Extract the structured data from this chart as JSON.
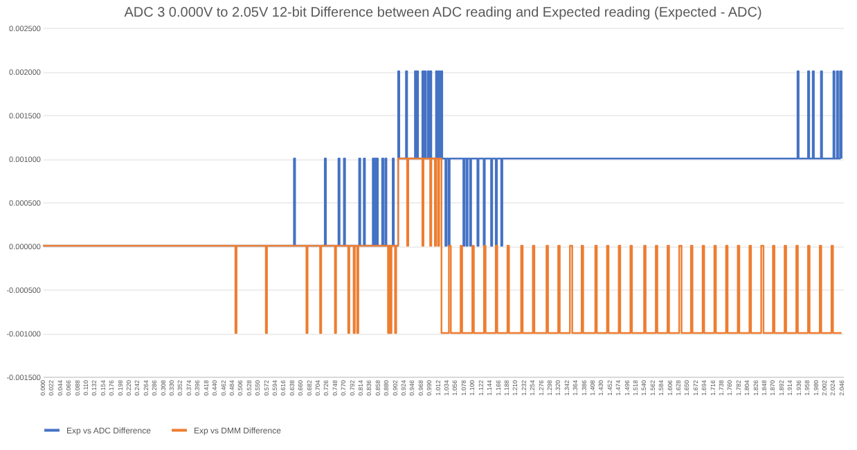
{
  "chart_data": {
    "type": "step",
    "title": "ADC 3 0.000V to 2.05V 12-bit Difference between ADC reading and Expected reading (Expected - ADC)",
    "xlim": [
      0,
      2.05
    ],
    "xticks": [
      {
        "value": 0,
        "label": "0.000"
      },
      {
        "value": 0.022,
        "label": "0.022"
      },
      {
        "value": 0.044,
        "label": "0.044"
      },
      {
        "value": 0.066,
        "label": "0.066"
      },
      {
        "value": 0.088,
        "label": "0.088"
      },
      {
        "value": 0.11,
        "label": "0.110"
      },
      {
        "value": 0.132,
        "label": "0.132"
      },
      {
        "value": 0.154,
        "label": "0.154"
      },
      {
        "value": 0.176,
        "label": "0.176"
      },
      {
        "value": 0.198,
        "label": "0.198"
      },
      {
        "value": 0.22,
        "label": "0.220"
      },
      {
        "value": 0.242,
        "label": "0.242"
      },
      {
        "value": 0.264,
        "label": "0.264"
      },
      {
        "value": 0.286,
        "label": "0.286"
      },
      {
        "value": 0.308,
        "label": "0.308"
      },
      {
        "value": 0.33,
        "label": "0.330"
      },
      {
        "value": 0.352,
        "label": "0.352"
      },
      {
        "value": 0.374,
        "label": "0.374"
      },
      {
        "value": 0.396,
        "label": "0.396"
      },
      {
        "value": 0.418,
        "label": "0.418"
      },
      {
        "value": 0.44,
        "label": "0.440"
      },
      {
        "value": 0.462,
        "label": "0.462"
      },
      {
        "value": 0.484,
        "label": "0.484"
      },
      {
        "value": 0.506,
        "label": "0.506"
      },
      {
        "value": 0.528,
        "label": "0.528"
      },
      {
        "value": 0.55,
        "label": "0.550"
      },
      {
        "value": 0.572,
        "label": "0.572"
      },
      {
        "value": 0.594,
        "label": "0.594"
      },
      {
        "value": 0.616,
        "label": "0.616"
      },
      {
        "value": 0.638,
        "label": "0.638"
      },
      {
        "value": 0.66,
        "label": "0.660"
      },
      {
        "value": 0.682,
        "label": "0.682"
      },
      {
        "value": 0.704,
        "label": "0.704"
      },
      {
        "value": 0.726,
        "label": "0.726"
      },
      {
        "value": 0.748,
        "label": "0.748"
      },
      {
        "value": 0.77,
        "label": "0.770"
      },
      {
        "value": 0.792,
        "label": "0.792"
      },
      {
        "value": 0.814,
        "label": "0.814"
      },
      {
        "value": 0.836,
        "label": "0.836"
      },
      {
        "value": 0.858,
        "label": "0.858"
      },
      {
        "value": 0.88,
        "label": "0.880"
      },
      {
        "value": 0.902,
        "label": "0.902"
      },
      {
        "value": 0.924,
        "label": "0.924"
      },
      {
        "value": 0.946,
        "label": "0.946"
      },
      {
        "value": 0.968,
        "label": "0.968"
      },
      {
        "value": 0.99,
        "label": "0.990"
      },
      {
        "value": 1.012,
        "label": "1.012"
      },
      {
        "value": 1.034,
        "label": "1.034"
      },
      {
        "value": 1.056,
        "label": "1.056"
      },
      {
        "value": 1.078,
        "label": "1.078"
      },
      {
        "value": 1.1,
        "label": "1.100"
      },
      {
        "value": 1.122,
        "label": "1.122"
      },
      {
        "value": 1.144,
        "label": "1.144"
      },
      {
        "value": 1.166,
        "label": "1.166"
      },
      {
        "value": 1.188,
        "label": "1.188"
      },
      {
        "value": 1.21,
        "label": "1.210"
      },
      {
        "value": 1.232,
        "label": "1.232"
      },
      {
        "value": 1.254,
        "label": "1.254"
      },
      {
        "value": 1.276,
        "label": "1.276"
      },
      {
        "value": 1.298,
        "label": "1.298"
      },
      {
        "value": 1.32,
        "label": "1.320"
      },
      {
        "value": 1.342,
        "label": "1.342"
      },
      {
        "value": 1.364,
        "label": "1.364"
      },
      {
        "value": 1.386,
        "label": "1.386"
      },
      {
        "value": 1.408,
        "label": "1.408"
      },
      {
        "value": 1.43,
        "label": "1.430"
      },
      {
        "value": 1.452,
        "label": "1.452"
      },
      {
        "value": 1.474,
        "label": "1.474"
      },
      {
        "value": 1.496,
        "label": "1.496"
      },
      {
        "value": 1.518,
        "label": "1.518"
      },
      {
        "value": 1.54,
        "label": "1.540"
      },
      {
        "value": 1.562,
        "label": "1.562"
      },
      {
        "value": 1.584,
        "label": "1.584"
      },
      {
        "value": 1.606,
        "label": "1.606"
      },
      {
        "value": 1.628,
        "label": "1.628"
      },
      {
        "value": 1.65,
        "label": "1.650"
      },
      {
        "value": 1.672,
        "label": "1.672"
      },
      {
        "value": 1.694,
        "label": "1.694"
      },
      {
        "value": 1.716,
        "label": "1.716"
      },
      {
        "value": 1.738,
        "label": "1.738"
      },
      {
        "value": 1.76,
        "label": "1.760"
      },
      {
        "value": 1.782,
        "label": "1.782"
      },
      {
        "value": 1.804,
        "label": "1.804"
      },
      {
        "value": 1.826,
        "label": "1.826"
      },
      {
        "value": 1.848,
        "label": "1.848"
      },
      {
        "value": 1.87,
        "label": "1.870"
      },
      {
        "value": 1.892,
        "label": "1.892"
      },
      {
        "value": 1.914,
        "label": "1.914"
      },
      {
        "value": 1.936,
        "label": "1.936"
      },
      {
        "value": 1.958,
        "label": "1.958"
      },
      {
        "value": 1.98,
        "label": "1.980"
      },
      {
        "value": 2.002,
        "label": "2.002"
      },
      {
        "value": 2.024,
        "label": "2.024"
      },
      {
        "value": 2.046,
        "label": "2.046"
      }
    ],
    "ylim": [
      -0.0015,
      0.0025
    ],
    "yticks": [
      {
        "value": -0.0015,
        "label": "-0.001500"
      },
      {
        "value": -0.001,
        "label": "-0.001000"
      },
      {
        "value": -0.0005,
        "label": "-0.000500"
      },
      {
        "value": 0,
        "label": "0.000000"
      },
      {
        "value": 0.0005,
        "label": "0.000500"
      },
      {
        "value": 0.001,
        "label": "0.001000"
      },
      {
        "value": 0.0015,
        "label": "0.001500"
      },
      {
        "value": 0.002,
        "label": "0.002000"
      },
      {
        "value": 0.0025,
        "label": "0.002500"
      }
    ],
    "grid": "y",
    "legend": "bottom",
    "series": [
      {
        "name": "Exp vs ADC Difference",
        "color": "#4472c4",
        "x": [
          0,
          0.643,
          0.646,
          0.722,
          0.725,
          0.757,
          0.76,
          0.771,
          0.774,
          0.81,
          0.813,
          0.822,
          0.825,
          0.845,
          0.848,
          0.85,
          0.853,
          0.855,
          0.858,
          0.869,
          0.872,
          0.877,
          0.88,
          0.896,
          0.899,
          0.91,
          0.913,
          0.93,
          0.933,
          0.953,
          0.956,
          0.958,
          0.961,
          0.972,
          0.975,
          0.978,
          0.981,
          0.986,
          0.989,
          0.992,
          0.995,
          1.007,
          1.01,
          1.013,
          1.016,
          1.019,
          1.023,
          1.031,
          1.034,
          1.039,
          1.042,
          1.077,
          1.08,
          1.085,
          1.088,
          1.094,
          1.097,
          1.113,
          1.116,
          1.129,
          1.132,
          1.148,
          1.151,
          1.16,
          1.163,
          1.174,
          1.177,
          1.933,
          1.936,
          1.96,
          1.963,
          1.972,
          1.975,
          1.993,
          1.996,
          2.025,
          2.028,
          2.034,
          2.037,
          2.042,
          2.046
        ],
        "values": [
          0,
          0.001,
          0,
          0.001,
          0,
          0.001,
          0,
          0.001,
          0,
          0.001,
          0,
          0.001,
          0,
          0.001,
          0,
          0.001,
          0,
          0.001,
          0,
          0.001,
          0,
          0.001,
          0,
          0.001,
          0,
          0.002,
          0.001,
          0.002,
          0.001,
          0.002,
          0.001,
          0.002,
          0.001,
          0.002,
          0.001,
          0.002,
          0.001,
          0.002,
          0.001,
          0.002,
          0.001,
          0.002,
          0.001,
          0.002,
          0.001,
          0.002,
          0.001,
          0,
          0.001,
          0,
          0.001,
          0,
          0.001,
          0,
          0.001,
          0,
          0.001,
          0,
          0.001,
          0,
          0.001,
          0,
          0.001,
          0,
          0.001,
          0,
          0.001,
          0.002,
          0.001,
          0.002,
          0.001,
          0.002,
          0.001,
          0.002,
          0.001,
          0.002,
          0.001,
          0.002,
          0.001,
          0.002,
          0.001
        ]
      },
      {
        "name": "Exp vs DMM Difference",
        "color": "#ed7d31",
        "x": [
          0,
          0.493,
          0.496,
          0.571,
          0.574,
          0.675,
          0.678,
          0.71,
          0.713,
          0.748,
          0.751,
          0.782,
          0.785,
          0.796,
          0.799,
          0.805,
          0.808,
          0.884,
          0.887,
          0.89,
          0.893,
          0.902,
          0.905,
          0.91,
          0.933,
          0.936,
          0.972,
          0.975,
          0.992,
          0.995,
          1.004,
          1.007,
          1.012,
          1.015,
          1.021,
          1.04,
          1.045,
          1.07,
          1.074,
          1.1,
          1.104,
          1.13,
          1.134,
          1.16,
          1.164,
          1.19,
          1.194,
          1.225,
          1.229,
          1.255,
          1.259,
          1.29,
          1.294,
          1.32,
          1.324,
          1.35,
          1.356,
          1.38,
          1.384,
          1.415,
          1.419,
          1.445,
          1.449,
          1.475,
          1.479,
          1.505,
          1.509,
          1.54,
          1.544,
          1.57,
          1.574,
          1.6,
          1.604,
          1.63,
          1.636,
          1.66,
          1.664,
          1.69,
          1.694,
          1.72,
          1.724,
          1.75,
          1.754,
          1.78,
          1.784,
          1.81,
          1.814,
          1.84,
          1.846,
          1.87,
          1.874,
          1.9,
          1.904,
          1.93,
          1.934,
          1.96,
          1.964,
          1.99,
          1.994,
          2.02,
          2.024,
          2.046
        ],
        "values": [
          0,
          -0.001,
          0,
          -0.001,
          0,
          -0.001,
          0,
          -0.001,
          0,
          -0.001,
          0,
          -0.001,
          0,
          -0.001,
          0,
          -0.001,
          0,
          -0.001,
          0,
          -0.001,
          0,
          -0.001,
          0,
          0.001,
          0,
          0.001,
          0,
          0.001,
          0,
          0.001,
          0,
          0.001,
          0,
          0.001,
          -0.001,
          0,
          -0.001,
          0,
          -0.001,
          0,
          -0.001,
          0,
          -0.001,
          0,
          -0.001,
          0,
          -0.001,
          0,
          -0.001,
          0,
          -0.001,
          0,
          -0.001,
          0,
          -0.001,
          0,
          -0.001,
          0,
          -0.001,
          0,
          -0.001,
          0,
          -0.001,
          0,
          -0.001,
          0,
          -0.001,
          0,
          -0.001,
          0,
          -0.001,
          0,
          -0.001,
          0,
          -0.001,
          0,
          -0.001,
          0,
          -0.001,
          0,
          -0.001,
          0,
          -0.001,
          0,
          -0.001,
          0,
          -0.001,
          0,
          -0.001,
          0,
          -0.001,
          0,
          -0.001,
          0,
          -0.001,
          0,
          -0.001,
          0,
          -0.001,
          0,
          -0.001,
          -0.001
        ]
      }
    ]
  }
}
